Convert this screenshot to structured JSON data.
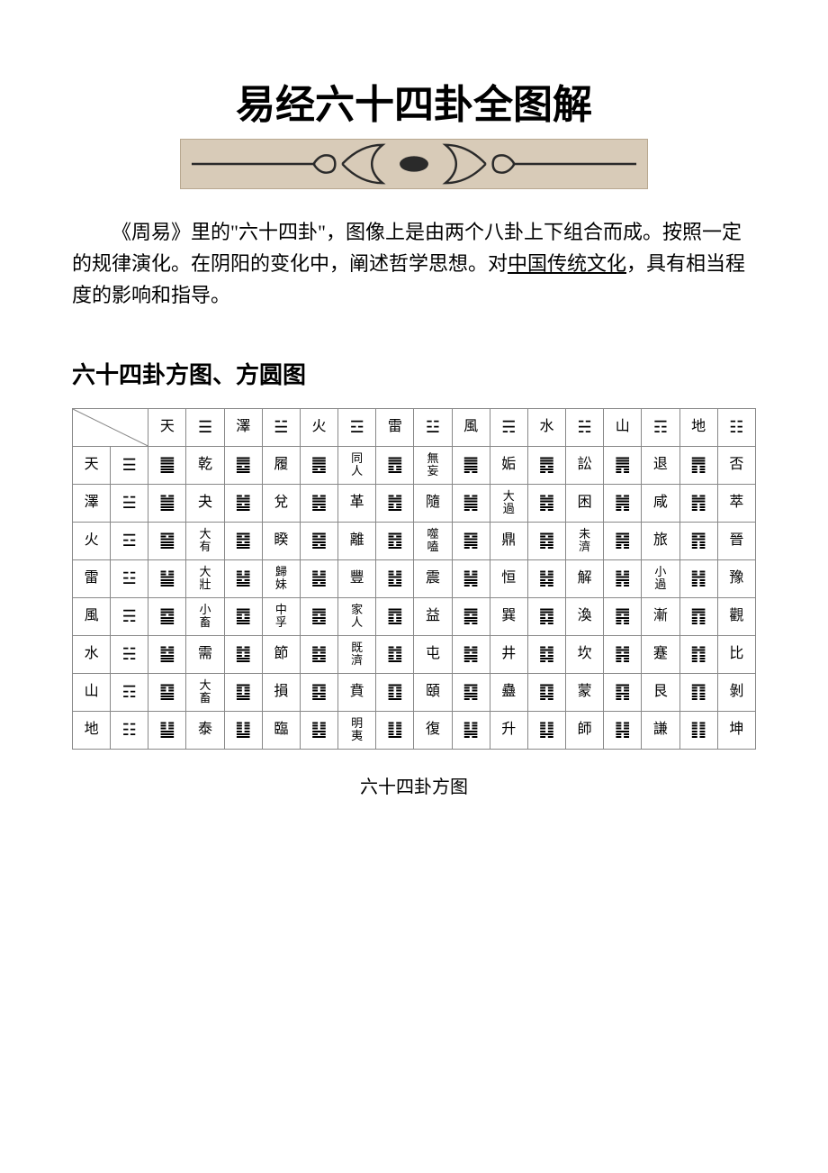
{
  "title": "易经六十四卦全图解",
  "intro_parts": {
    "p1": "《周易》里的\"六十四卦\"，图像上是由两个八卦上下组合而成。按照一定的规律演化。在阴阳的变化中，阐述哲学思想。对",
    "link": "中国传统文化",
    "p2": "，具有相当程度的影响和指导。"
  },
  "section_title": "六十四卦方图、方圆图",
  "caption": "六十四卦方图",
  "colors": {
    "background": "#ffffff",
    "text": "#000000",
    "border": "#888888",
    "divider_bg": "#d8cbb8",
    "divider_border": "#b8a890",
    "divider_stroke": "#2a2a2a"
  },
  "trigrams": [
    {
      "name": "天",
      "symbol": "☰"
    },
    {
      "name": "澤",
      "symbol": "☱"
    },
    {
      "name": "火",
      "symbol": "☲"
    },
    {
      "name": "雷",
      "symbol": "☳"
    },
    {
      "name": "風",
      "symbol": "☴"
    },
    {
      "name": "水",
      "symbol": "☵"
    },
    {
      "name": "山",
      "symbol": "☶"
    },
    {
      "name": "地",
      "symbol": "☷"
    }
  ],
  "hexagrams": [
    [
      {
        "sym": "䷀",
        "name": "乾"
      },
      {
        "sym": "䷉",
        "name": "履"
      },
      {
        "sym": "䷌",
        "name": "同人"
      },
      {
        "sym": "䷘",
        "name": "無妄"
      },
      {
        "sym": "䷫",
        "name": "姤"
      },
      {
        "sym": "䷅",
        "name": "訟"
      },
      {
        "sym": "䷠",
        "name": "退"
      },
      {
        "sym": "䷋",
        "name": "否"
      }
    ],
    [
      {
        "sym": "䷪",
        "name": "夬"
      },
      {
        "sym": "䷹",
        "name": "兌"
      },
      {
        "sym": "䷰",
        "name": "革"
      },
      {
        "sym": "䷐",
        "name": "隨"
      },
      {
        "sym": "䷛",
        "name": "大過"
      },
      {
        "sym": "䷮",
        "name": "困"
      },
      {
        "sym": "䷞",
        "name": "咸"
      },
      {
        "sym": "䷬",
        "name": "萃"
      }
    ],
    [
      {
        "sym": "䷍",
        "name": "大有"
      },
      {
        "sym": "䷥",
        "name": "睽"
      },
      {
        "sym": "䷝",
        "name": "離"
      },
      {
        "sym": "䷔",
        "name": "噬嗑"
      },
      {
        "sym": "䷱",
        "name": "鼎"
      },
      {
        "sym": "䷿",
        "name": "未濟"
      },
      {
        "sym": "䷷",
        "name": "旅"
      },
      {
        "sym": "䷢",
        "name": "晉"
      }
    ],
    [
      {
        "sym": "䷡",
        "name": "大壯"
      },
      {
        "sym": "䷵",
        "name": "歸妹"
      },
      {
        "sym": "䷶",
        "name": "豐"
      },
      {
        "sym": "䷲",
        "name": "震"
      },
      {
        "sym": "䷟",
        "name": "恒"
      },
      {
        "sym": "䷧",
        "name": "解"
      },
      {
        "sym": "䷽",
        "name": "小過"
      },
      {
        "sym": "䷏",
        "name": "豫"
      }
    ],
    [
      {
        "sym": "䷈",
        "name": "小畜"
      },
      {
        "sym": "䷼",
        "name": "中孚"
      },
      {
        "sym": "䷤",
        "name": "家人"
      },
      {
        "sym": "䷩",
        "name": "益"
      },
      {
        "sym": "䷸",
        "name": "巽"
      },
      {
        "sym": "䷺",
        "name": "渙"
      },
      {
        "sym": "䷴",
        "name": "漸"
      },
      {
        "sym": "䷓",
        "name": "觀"
      }
    ],
    [
      {
        "sym": "䷄",
        "name": "需"
      },
      {
        "sym": "䷻",
        "name": "節"
      },
      {
        "sym": "䷾",
        "name": "既濟"
      },
      {
        "sym": "䷂",
        "name": "屯"
      },
      {
        "sym": "䷯",
        "name": "井"
      },
      {
        "sym": "䷜",
        "name": "坎"
      },
      {
        "sym": "䷦",
        "name": "蹇"
      },
      {
        "sym": "䷇",
        "name": "比"
      }
    ],
    [
      {
        "sym": "䷙",
        "name": "大畜"
      },
      {
        "sym": "䷨",
        "name": "損"
      },
      {
        "sym": "䷕",
        "name": "賁"
      },
      {
        "sym": "䷚",
        "name": "頤"
      },
      {
        "sym": "䷑",
        "name": "蠱"
      },
      {
        "sym": "䷃",
        "name": "蒙"
      },
      {
        "sym": "䷳",
        "name": "艮"
      },
      {
        "sym": "䷖",
        "name": "剝"
      }
    ],
    [
      {
        "sym": "䷊",
        "name": "泰"
      },
      {
        "sym": "䷒",
        "name": "臨"
      },
      {
        "sym": "䷣",
        "name": "明夷"
      },
      {
        "sym": "䷗",
        "name": "復"
      },
      {
        "sym": "䷭",
        "name": "升"
      },
      {
        "sym": "䷆",
        "name": "師"
      },
      {
        "sym": "䷎",
        "name": "謙"
      },
      {
        "sym": "䷁",
        "name": "坤"
      }
    ]
  ]
}
